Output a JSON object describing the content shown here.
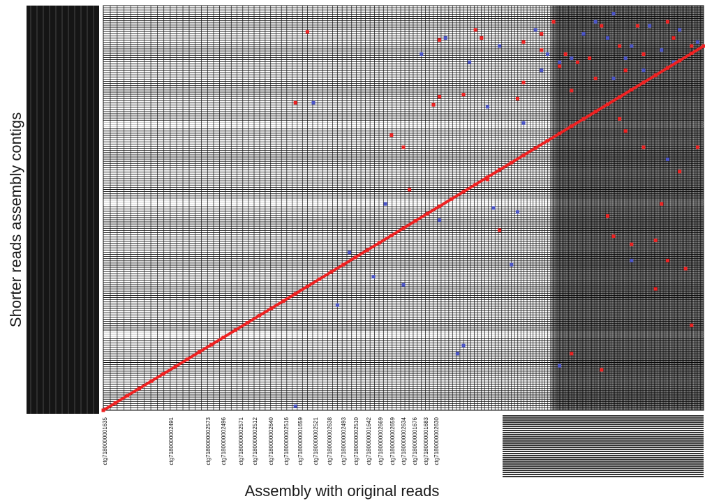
{
  "chart_data": {
    "type": "scatter",
    "title": "",
    "xlabel": "Assembly with original reads",
    "ylabel": "Shorter reads assembly contigs",
    "grid": true,
    "legend": "none",
    "xlim": [
      0,
      1
    ],
    "ylim": [
      0,
      1
    ],
    "colors": {
      "background": "#ffffff",
      "grid": "#101010",
      "forward_match": "#ee2222",
      "reverse_match": "#4b55c8"
    },
    "x_tick_labels": [
      "ctg7180000001635",
      "ctg7180000002491",
      "ctg7180000002573",
      "ctg7180000002496",
      "ctg7180000002571",
      "ctg7180000002512",
      "ctg7180000002640",
      "ctg7180000002516",
      "ctg7180000001659",
      "ctg7180000002521",
      "ctg7180000002638",
      "ctg7180000002493",
      "ctg7180000002510",
      "ctg7180000001642",
      "ctg7180000002669",
      "ctg7180000002659",
      "ctg7180000002634",
      "ctg7180000001676",
      "ctg7180000001683",
      "ctg7180000002630"
    ],
    "series": [
      {
        "name": "",
        "color": "#ee2222",
        "points": [
          [
            0.0,
            0.0
          ],
          [
            0.02,
            0.018
          ],
          [
            0.04,
            0.036
          ],
          [
            0.06,
            0.054
          ],
          [
            0.08,
            0.072
          ],
          [
            0.1,
            0.09
          ],
          [
            0.12,
            0.108
          ],
          [
            0.14,
            0.126
          ],
          [
            0.16,
            0.144
          ],
          [
            0.18,
            0.162
          ],
          [
            0.2,
            0.18
          ],
          [
            0.22,
            0.198
          ],
          [
            0.24,
            0.216
          ],
          [
            0.26,
            0.234
          ],
          [
            0.28,
            0.252
          ],
          [
            0.3,
            0.27
          ],
          [
            0.32,
            0.288
          ],
          [
            0.34,
            0.306
          ],
          [
            0.36,
            0.324
          ],
          [
            0.38,
            0.342
          ],
          [
            0.4,
            0.36
          ],
          [
            0.42,
            0.378
          ],
          [
            0.44,
            0.396
          ],
          [
            0.46,
            0.414
          ],
          [
            0.48,
            0.432
          ],
          [
            0.5,
            0.45
          ],
          [
            0.52,
            0.468
          ],
          [
            0.54,
            0.486
          ],
          [
            0.56,
            0.504
          ],
          [
            0.58,
            0.522
          ],
          [
            0.6,
            0.54
          ],
          [
            0.62,
            0.558
          ],
          [
            0.64,
            0.576
          ],
          [
            0.66,
            0.594
          ],
          [
            0.68,
            0.612
          ],
          [
            0.7,
            0.63
          ],
          [
            0.72,
            0.648
          ],
          [
            0.74,
            0.666
          ],
          [
            0.76,
            0.684
          ],
          [
            0.78,
            0.702
          ],
          [
            0.8,
            0.72
          ],
          [
            0.82,
            0.738
          ],
          [
            0.84,
            0.756
          ],
          [
            0.86,
            0.774
          ],
          [
            0.88,
            0.792
          ],
          [
            0.9,
            0.81
          ],
          [
            0.92,
            0.828
          ],
          [
            0.94,
            0.846
          ],
          [
            0.96,
            0.864
          ],
          [
            0.98,
            0.882
          ],
          [
            1.0,
            0.9
          ],
          [
            0.34,
            0.935
          ],
          [
            0.32,
            0.76
          ],
          [
            0.48,
            0.68
          ],
          [
            0.5,
            0.65
          ],
          [
            0.51,
            0.545
          ],
          [
            0.55,
            0.755
          ],
          [
            0.56,
            0.775
          ],
          [
            0.56,
            0.915
          ],
          [
            0.6,
            0.78
          ],
          [
            0.62,
            0.94
          ],
          [
            0.63,
            0.92
          ],
          [
            0.64,
            0.57
          ],
          [
            0.66,
            0.445
          ],
          [
            0.69,
            0.77
          ],
          [
            0.7,
            0.81
          ],
          [
            0.73,
            0.89
          ],
          [
            0.78,
            0.79
          ],
          [
            0.84,
            0.48
          ],
          [
            0.86,
            0.72
          ],
          [
            0.87,
            0.69
          ],
          [
            0.9,
            0.65
          ],
          [
            0.92,
            0.42
          ],
          [
            0.93,
            0.51
          ],
          [
            0.96,
            0.59
          ],
          [
            0.99,
            0.65
          ],
          [
            0.94,
            0.37
          ],
          [
            0.85,
            0.43
          ],
          [
            0.97,
            0.35
          ],
          [
            0.88,
            0.41
          ],
          [
            0.92,
            0.3
          ],
          [
            0.78,
            0.14
          ],
          [
            0.83,
            0.1
          ],
          [
            0.89,
            0.95
          ],
          [
            0.95,
            0.92
          ],
          [
            0.98,
            0.9
          ],
          [
            0.7,
            0.91
          ],
          [
            0.73,
            0.93
          ],
          [
            0.75,
            0.96
          ],
          [
            0.77,
            0.88
          ],
          [
            0.81,
            0.87
          ],
          [
            0.83,
            0.95
          ],
          [
            0.86,
            0.9
          ],
          [
            0.9,
            0.88
          ],
          [
            0.94,
            0.96
          ],
          [
            0.76,
            0.85
          ],
          [
            0.98,
            0.21
          ],
          [
            0.79,
            0.86
          ],
          [
            0.82,
            0.82
          ],
          [
            0.87,
            0.84
          ]
        ]
      },
      {
        "name": "",
        "color": "#4b55c8",
        "points": [
          [
            0.35,
            0.76
          ],
          [
            0.39,
            0.26
          ],
          [
            0.56,
            0.47
          ],
          [
            0.57,
            0.92
          ],
          [
            0.59,
            0.14
          ],
          [
            0.53,
            0.88
          ],
          [
            0.64,
            0.75
          ],
          [
            0.65,
            0.5
          ],
          [
            0.68,
            0.36
          ],
          [
            0.69,
            0.49
          ],
          [
            0.7,
            0.71
          ],
          [
            0.72,
            0.94
          ],
          [
            0.74,
            0.88
          ],
          [
            0.76,
            0.86
          ],
          [
            0.78,
            0.87
          ],
          [
            0.8,
            0.93
          ],
          [
            0.82,
            0.96
          ],
          [
            0.84,
            0.92
          ],
          [
            0.88,
            0.9
          ],
          [
            0.91,
            0.95
          ],
          [
            0.93,
            0.89
          ],
          [
            0.96,
            0.94
          ],
          [
            0.99,
            0.91
          ],
          [
            0.85,
            0.98
          ],
          [
            0.87,
            0.87
          ],
          [
            0.76,
            0.11
          ],
          [
            0.94,
            0.62
          ],
          [
            0.85,
            0.82
          ],
          [
            0.9,
            0.84
          ],
          [
            0.73,
            0.84
          ],
          [
            0.47,
            0.51
          ],
          [
            0.5,
            0.31
          ],
          [
            0.45,
            0.33
          ],
          [
            0.6,
            0.16
          ],
          [
            0.32,
            0.01
          ],
          [
            0.41,
            0.39
          ],
          [
            0.61,
            0.86
          ],
          [
            0.66,
            0.9
          ],
          [
            0.95,
            0.86
          ],
          [
            0.88,
            0.37
          ]
        ]
      }
    ]
  }
}
